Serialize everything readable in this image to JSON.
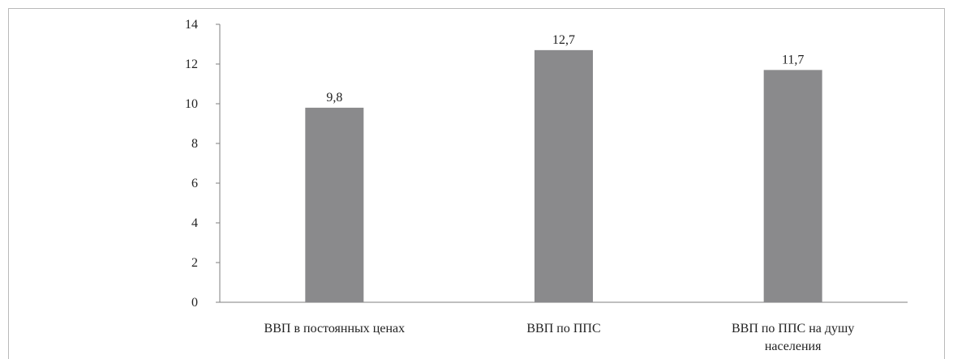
{
  "chart_data": {
    "type": "bar",
    "categories": [
      [
        "ВВП в постоянных ценах"
      ],
      [
        "ВВП по ППС"
      ],
      [
        "ВВП по ППС на душу",
        "населения"
      ]
    ],
    "values": [
      9.8,
      12.7,
      11.7
    ],
    "value_labels": [
      "9,8",
      "12,7",
      "11,7"
    ],
    "yticks": [
      "0",
      "2",
      "4",
      "6",
      "8",
      "10",
      "12",
      "14"
    ],
    "ylim": [
      0,
      14
    ],
    "bar_color": "#8a8a8c",
    "title": "",
    "xlabel": "",
    "ylabel": "",
    "grid": false,
    "legend": false
  }
}
